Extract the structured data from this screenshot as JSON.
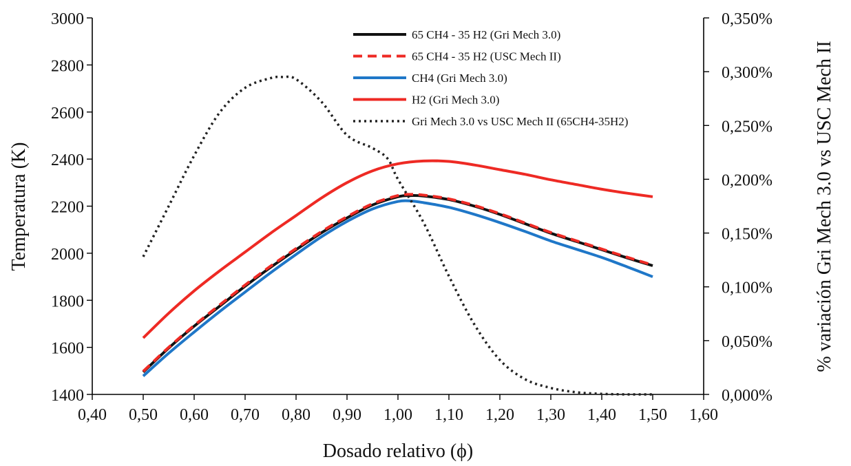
{
  "chart_data": {
    "type": "line",
    "title": "",
    "xlabel": "Dosado relativo (ϕ)",
    "ylabel": "Temperatura (K)",
    "y2label": "% variación Gri Mech 3.0 vs USC Mech II",
    "xlim": [
      0.4,
      1.6
    ],
    "ylim": [
      1400,
      3000
    ],
    "y2lim": [
      0,
      0.35
    ],
    "x_ticks": [
      0.4,
      0.5,
      0.6,
      0.7,
      0.8,
      0.9,
      1.0,
      1.1,
      1.2,
      1.3,
      1.4,
      1.5,
      1.6
    ],
    "x_tick_labels": [
      "0,40",
      "0,50",
      "0,60",
      "0,70",
      "0,80",
      "0,90",
      "1,00",
      "1,10",
      "1,20",
      "1,30",
      "1,40",
      "1,50",
      "1,60"
    ],
    "y_ticks": [
      1400,
      1600,
      1800,
      2000,
      2200,
      2400,
      2600,
      2800,
      3000
    ],
    "y_tick_labels": [
      "1400",
      "1600",
      "1800",
      "2000",
      "2200",
      "2400",
      "2600",
      "2800",
      "3000"
    ],
    "y2_ticks": [
      0,
      0.05,
      0.1,
      0.15,
      0.2,
      0.25,
      0.3,
      0.35
    ],
    "y2_tick_labels": [
      "0,000%",
      "0,050%",
      "0,100%",
      "0,150%",
      "0,200%",
      "0,250%",
      "0,300%",
      "0,350%"
    ],
    "grid": false,
    "legend_position": "top-right",
    "series": [
      {
        "name": "65 CH4 - 35 H2 (Gri Mech 3.0)",
        "axis": "left",
        "color": "#111111",
        "dash": "solid",
        "width": 4,
        "x": [
          0.5,
          0.55,
          0.6,
          0.65,
          0.7,
          0.75,
          0.8,
          0.85,
          0.9,
          0.95,
          1.0,
          1.025,
          1.05,
          1.1,
          1.15,
          1.2,
          1.25,
          1.3,
          1.35,
          1.4,
          1.45,
          1.5
        ],
        "values": [
          1495,
          1597,
          1690,
          1775,
          1860,
          1940,
          2015,
          2087,
          2150,
          2205,
          2240,
          2245,
          2243,
          2228,
          2200,
          2165,
          2125,
          2085,
          2050,
          2015,
          1980,
          1947
        ]
      },
      {
        "name": "65 CH4 - 35 H2 (USC Mech II)",
        "axis": "left",
        "color": "#ee2a24",
        "dash": "dashed",
        "width": 4,
        "x": [
          0.5,
          0.55,
          0.6,
          0.65,
          0.7,
          0.75,
          0.8,
          0.85,
          0.9,
          0.95,
          1.0,
          1.025,
          1.05,
          1.1,
          1.15,
          1.2,
          1.25,
          1.3,
          1.35,
          1.4,
          1.45,
          1.5
        ],
        "values": [
          1498,
          1600,
          1693,
          1780,
          1865,
          1945,
          2020,
          2092,
          2155,
          2210,
          2245,
          2250,
          2247,
          2231,
          2203,
          2168,
          2128,
          2088,
          2053,
          2018,
          1983,
          1950
        ]
      },
      {
        "name": "CH4 (Gri Mech 3.0)",
        "axis": "left",
        "color": "#1f77c8",
        "dash": "solid",
        "width": 4,
        "x": [
          0.5,
          0.55,
          0.6,
          0.65,
          0.7,
          0.75,
          0.8,
          0.85,
          0.9,
          0.95,
          1.0,
          1.025,
          1.05,
          1.1,
          1.15,
          1.2,
          1.25,
          1.3,
          1.35,
          1.4,
          1.45,
          1.5
        ],
        "values": [
          1478,
          1575,
          1665,
          1752,
          1835,
          1917,
          1995,
          2070,
          2135,
          2188,
          2220,
          2222,
          2215,
          2195,
          2165,
          2130,
          2092,
          2052,
          2017,
          1982,
          1942,
          1900
        ]
      },
      {
        "name": "H2 (Gri Mech 3.0)",
        "axis": "left",
        "color": "#ee2a24",
        "dash": "solid",
        "width": 4,
        "x": [
          0.5,
          0.55,
          0.6,
          0.65,
          0.7,
          0.75,
          0.8,
          0.85,
          0.9,
          0.95,
          1.0,
          1.05,
          1.1,
          1.15,
          1.2,
          1.25,
          1.3,
          1.35,
          1.4,
          1.45,
          1.5
        ],
        "values": [
          1640,
          1745,
          1840,
          1925,
          2005,
          2085,
          2160,
          2235,
          2300,
          2350,
          2380,
          2392,
          2390,
          2375,
          2355,
          2335,
          2312,
          2292,
          2272,
          2255,
          2240
        ]
      },
      {
        "name": "Gri Mech 3.0 vs USC Mech II (65CH4-35H2)",
        "axis": "right",
        "color": "#222222",
        "dash": "dotted",
        "width": 3.5,
        "x": [
          0.5,
          0.55,
          0.6,
          0.65,
          0.7,
          0.75,
          0.775,
          0.8,
          0.85,
          0.9,
          0.95,
          0.98,
          1.0,
          1.05,
          1.1,
          1.15,
          1.2,
          1.25,
          1.3,
          1.35,
          1.4,
          1.45,
          1.5
        ],
        "values": [
          0.128,
          0.175,
          0.222,
          0.262,
          0.285,
          0.294,
          0.295,
          0.293,
          0.272,
          0.241,
          0.229,
          0.219,
          0.2,
          0.16,
          0.11,
          0.065,
          0.032,
          0.014,
          0.006,
          0.002,
          0.0005,
          0.0,
          0.0
        ]
      }
    ]
  }
}
